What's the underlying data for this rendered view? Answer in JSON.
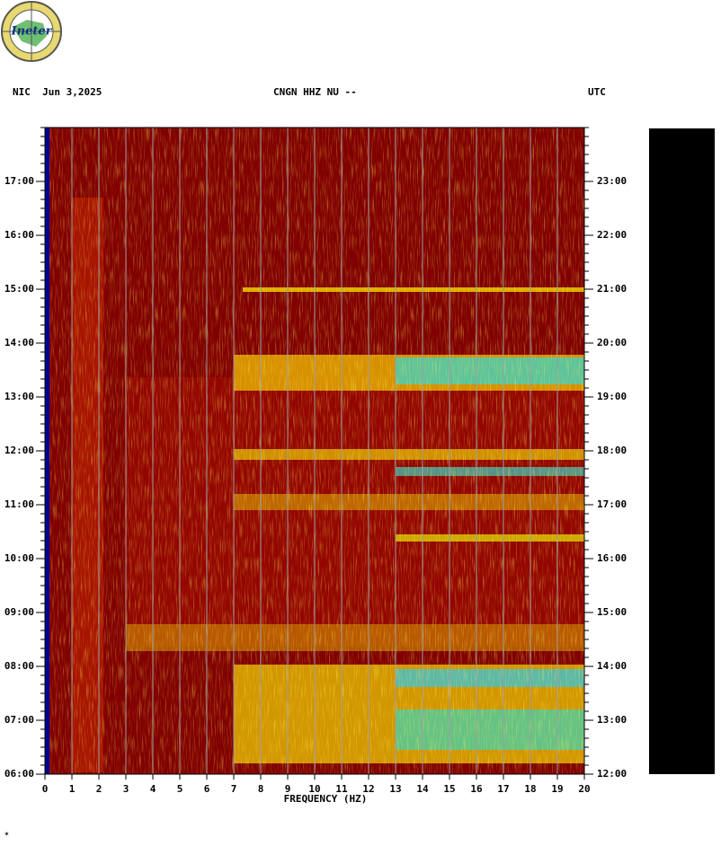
{
  "logo": "Ineter",
  "chart_data": {
    "type": "spectrogram",
    "header_left": "NIC  Jun 3,2025",
    "title": "CNGN HHZ NU --",
    "header_right": "UTC",
    "xlabel": "FREQUENCY (HZ)",
    "xlim": [
      0,
      20
    ],
    "xticks": [
      0,
      1,
      2,
      3,
      4,
      5,
      6,
      7,
      8,
      9,
      10,
      11,
      12,
      13,
      14,
      15,
      16,
      17,
      18,
      19,
      20
    ],
    "ylim": [
      6,
      18
    ],
    "yticks": [
      {
        "value": 6,
        "label": "06:00"
      },
      {
        "value": 7,
        "label": "07:00"
      },
      {
        "value": 8,
        "label": "08:00"
      },
      {
        "value": 9,
        "label": "09:00"
      },
      {
        "value": 10,
        "label": "10:00"
      },
      {
        "value": 11,
        "label": "11:00"
      },
      {
        "value": 12,
        "label": "12:00"
      },
      {
        "value": 13,
        "label": "13:00"
      },
      {
        "value": 14,
        "label": "14:00"
      },
      {
        "value": 15,
        "label": "15:00"
      },
      {
        "value": 16,
        "label": "16:00"
      },
      {
        "value": 17,
        "label": "17:00"
      }
    ],
    "y2lim": [
      12,
      24
    ],
    "y2ticks": [
      {
        "value": 12,
        "label": "12:00"
      },
      {
        "value": 13,
        "label": "13:00"
      },
      {
        "value": 14,
        "label": "14:00"
      },
      {
        "value": 15,
        "label": "15:00"
      },
      {
        "value": 16,
        "label": "16:00"
      },
      {
        "value": 17,
        "label": "17:00"
      },
      {
        "value": 18,
        "label": "18:00"
      },
      {
        "value": 19,
        "label": "19:00"
      },
      {
        "value": 20,
        "label": "20:00"
      },
      {
        "value": 21,
        "label": "21:00"
      },
      {
        "value": 22,
        "label": "22:00"
      },
      {
        "value": 23,
        "label": "23:00"
      }
    ],
    "grid": true
  }
}
